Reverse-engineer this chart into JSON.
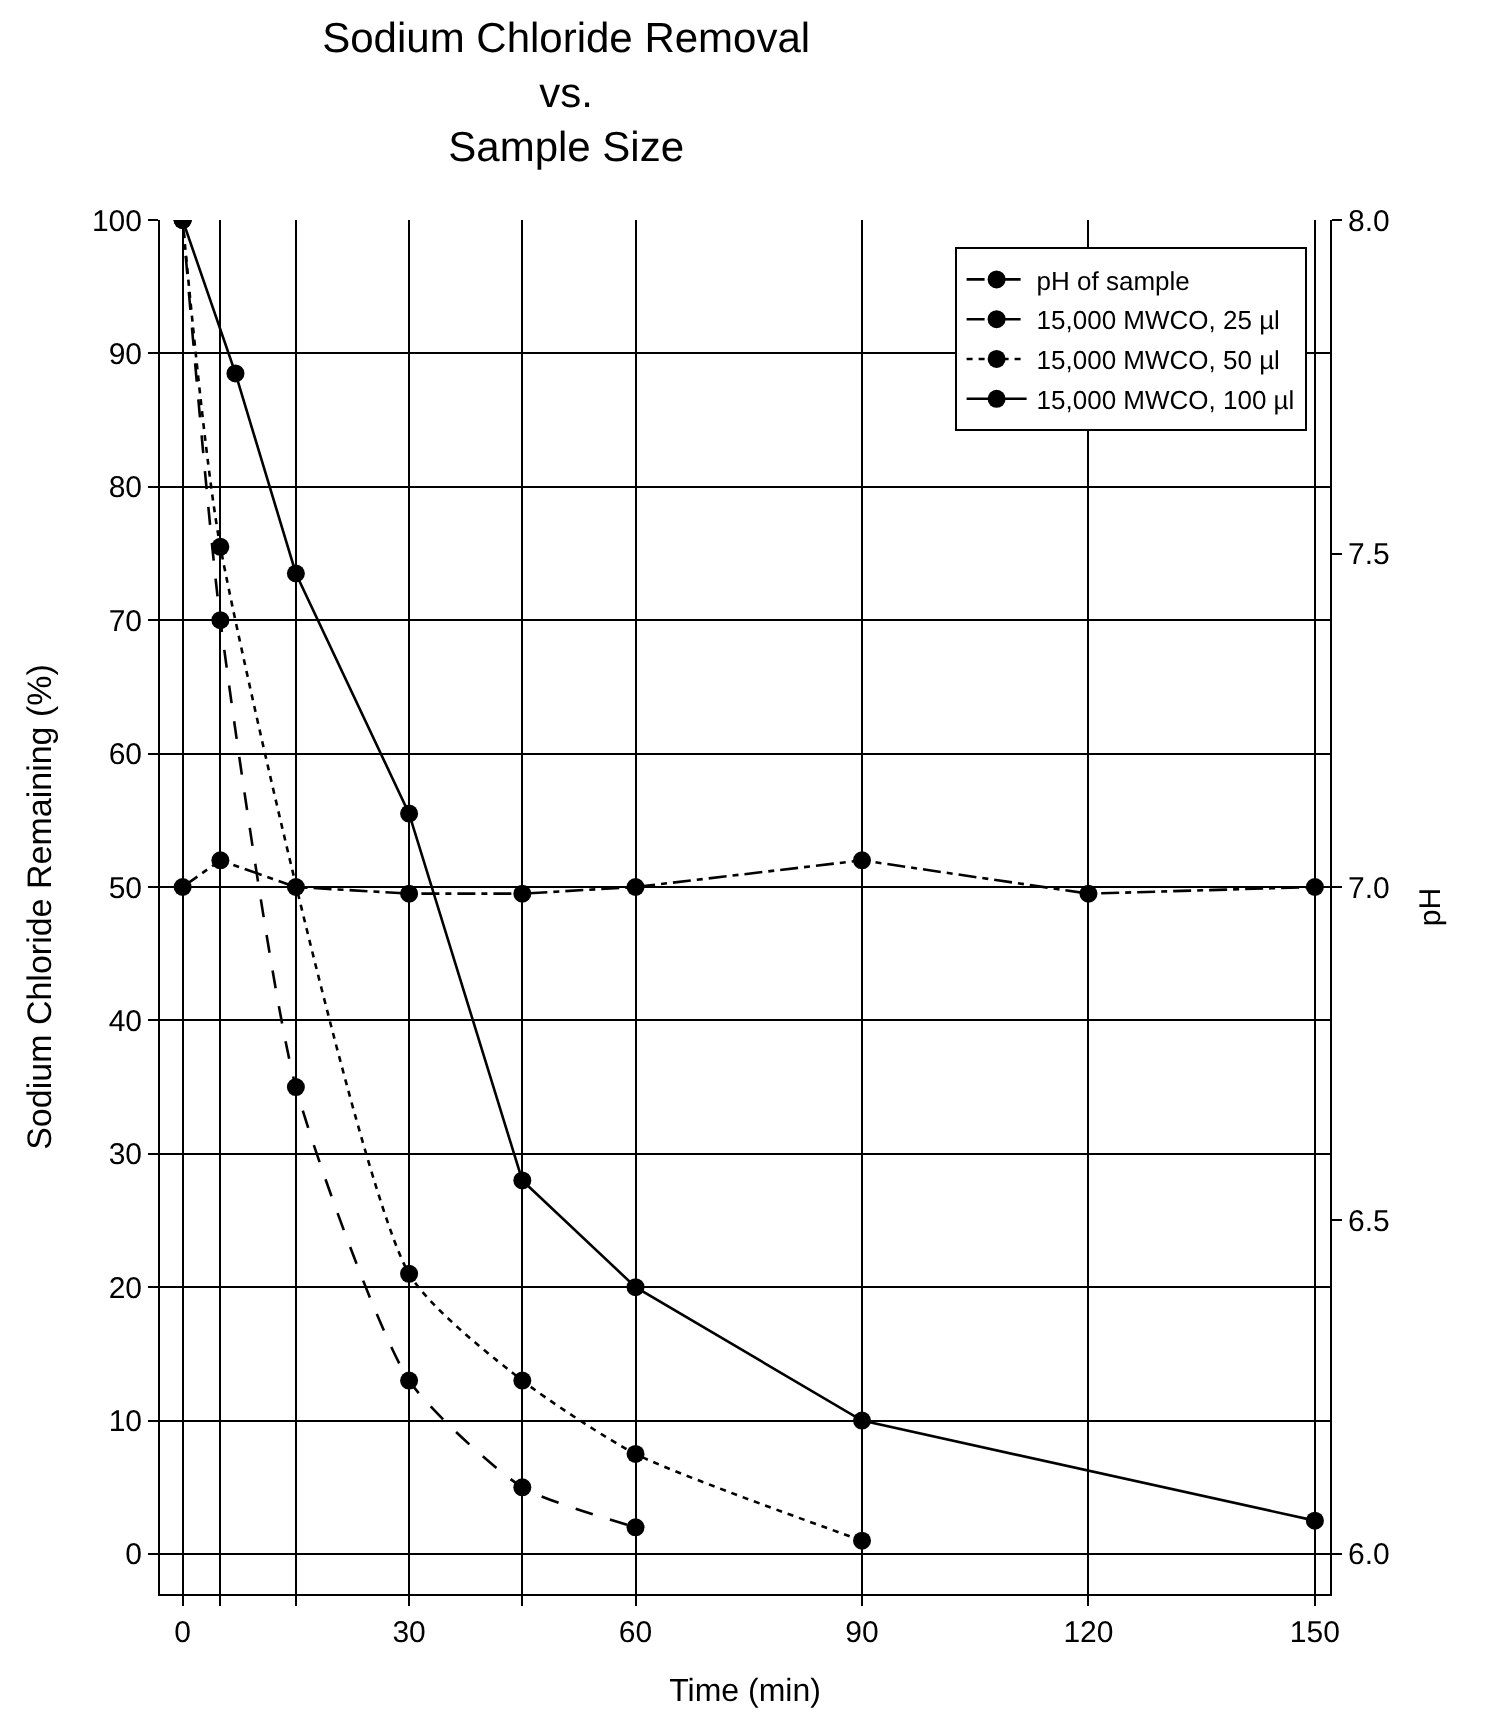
{
  "chart_data": {
    "type": "line",
    "title": "Sodium Chloride Removal\nvs.\nSample Size",
    "xlabel": "Time (min)",
    "ylabel": "Sodium Chloride Remaining (%)",
    "y2label": "pH",
    "xlim": [
      -3,
      152
    ],
    "xticks": [
      0,
      {
        "value": 5,
        "label": null
      },
      {
        "value": 15,
        "label": null
      },
      30,
      {
        "value": 45,
        "label": null
      },
      60,
      90,
      120,
      150
    ],
    "ylim": [
      -3,
      100
    ],
    "yticks": [
      0,
      10,
      20,
      30,
      40,
      50,
      60,
      70,
      80,
      90,
      100
    ],
    "y2lim": [
      5.94,
      8.0
    ],
    "y2ticks": [
      {
        "value": 6,
        "label": "6.0"
      },
      6.5,
      {
        "value": 7,
        "label": "7.0"
      },
      7.5,
      {
        "value": 8,
        "label": "8.0"
      }
    ],
    "grid": true,
    "legend": "top right",
    "marker": "circle",
    "series": [
      {
        "name": "pH of sample",
        "color": "#000000",
        "axis": "y2",
        "line_style": "dashdot",
        "x": [
          0,
          5,
          15,
          30,
          45,
          60,
          90,
          120,
          150
        ],
        "values": [
          7.0,
          7.04,
          7.0,
          6.99,
          6.99,
          7.0,
          7.04,
          6.99,
          7.0
        ]
      },
      {
        "name": "15,000 MWCO, 25 µl",
        "color": "#000000",
        "line_style": "dashed",
        "x": [
          0,
          5,
          15,
          30,
          45,
          60
        ],
        "values": [
          100,
          70,
          35,
          13,
          5,
          2
        ]
      },
      {
        "name": "15,000 MWCO, 50 µl",
        "color": "#000000",
        "line_style": "dotted",
        "x": [
          0,
          5,
          30,
          45,
          60,
          90
        ],
        "values": [
          100,
          75.5,
          21,
          13,
          7.5,
          1
        ]
      },
      {
        "name": "15,000 MWCO, 100 µl",
        "color": "#000000",
        "line_style": "solid",
        "x": [
          0,
          7,
          15,
          30,
          45,
          60,
          90,
          150
        ],
        "values": [
          100,
          88.5,
          73.5,
          55.5,
          28,
          20,
          10,
          2.5
        ]
      }
    ]
  }
}
